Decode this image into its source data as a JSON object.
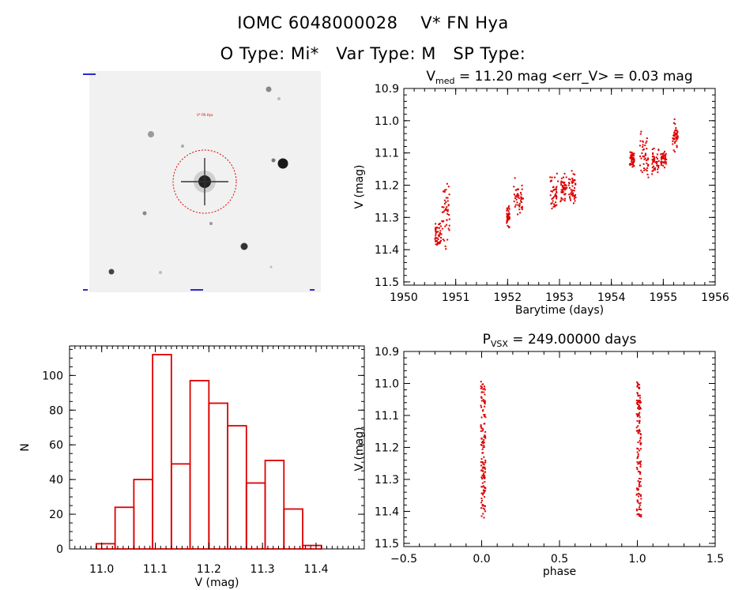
{
  "header": {
    "line1": "IOMC 6048000028    V* FN Hya",
    "line2": "O Type: Mi*   Var Type: M   SP Type:"
  },
  "thumbnail": {
    "target_label": "V* FN Hya",
    "colors": {
      "background": "#f2f2f2",
      "circle": "#dd0000"
    }
  },
  "chart_data": [
    {
      "type": "scatter",
      "title_main": "V",
      "title_sub": "med",
      "title_rest": " = 11.20 mag <err_V> = 0.03 mag",
      "xlabel": "Barytime (days)",
      "ylabel": "V (mag)",
      "xlim": [
        1950,
        1956
      ],
      "ylim": [
        10.9,
        11.51
      ],
      "y_inverted": true,
      "x_ticks": [
        "1950",
        "1951",
        "1952",
        "1953",
        "1954",
        "1955",
        "1956"
      ],
      "y_ticks": [
        "10.9",
        "11.0",
        "11.1",
        "11.2",
        "11.3",
        "11.4",
        "11.5"
      ],
      "color": "#dd0000",
      "clusters": [
        {
          "x_range": [
            1950.6,
            1950.73
          ],
          "y_range": [
            11.31,
            11.4
          ]
        },
        {
          "x_range": [
            1950.73,
            1950.88
          ],
          "y_range": [
            11.18,
            11.41
          ]
        },
        {
          "x_range": [
            1951.98,
            1952.04
          ],
          "y_range": [
            11.26,
            11.34
          ]
        },
        {
          "x_range": [
            1952.12,
            1952.3
          ],
          "y_range": [
            11.17,
            11.3
          ]
        },
        {
          "x_range": [
            1952.82,
            1952.98
          ],
          "y_range": [
            11.15,
            11.29
          ]
        },
        {
          "x_range": [
            1953.02,
            1953.14
          ],
          "y_range": [
            11.15,
            11.26
          ]
        },
        {
          "x_range": [
            1953.18,
            1953.32
          ],
          "y_range": [
            11.14,
            11.27
          ]
        },
        {
          "x_range": [
            1954.35,
            1954.45
          ],
          "y_range": [
            11.09,
            11.15
          ]
        },
        {
          "x_range": [
            1954.55,
            1954.72
          ],
          "y_range": [
            11.03,
            11.18
          ]
        },
        {
          "x_range": [
            1954.78,
            1954.92
          ],
          "y_range": [
            11.08,
            11.17
          ]
        },
        {
          "x_range": [
            1954.95,
            1955.06
          ],
          "y_range": [
            11.09,
            11.15
          ]
        },
        {
          "x_range": [
            1955.18,
            1955.28
          ],
          "y_range": [
            10.99,
            11.1
          ]
        }
      ]
    },
    {
      "type": "bar",
      "title": "",
      "xlabel": "V (mag)",
      "ylabel": "N",
      "xlim": [
        10.94,
        11.49
      ],
      "ylim": [
        0,
        117
      ],
      "x_ticks": [
        "11.0",
        "11.1",
        "11.2",
        "11.3",
        "11.4"
      ],
      "y_ticks": [
        "0",
        "20",
        "40",
        "60",
        "80",
        "100"
      ],
      "bin_width": 0.035,
      "bin_starts": [
        10.99,
        11.025,
        11.06,
        11.095,
        11.13,
        11.165,
        11.2,
        11.235,
        11.27,
        11.305,
        11.34,
        11.375,
        11.41
      ],
      "values": [
        3,
        24,
        40,
        112,
        49,
        97,
        84,
        71,
        38,
        51,
        23,
        2
      ],
      "color": "#dd0000"
    },
    {
      "type": "scatter",
      "title_main": "P",
      "title_sub": "VSX",
      "title_rest": " = 249.00000 days",
      "xlabel": "phase",
      "ylabel": "V (mag)",
      "xlim": [
        -0.5,
        1.5
      ],
      "ylim": [
        10.9,
        11.51
      ],
      "y_inverted": true,
      "x_ticks": [
        "−0.5",
        "0.0",
        "0.5",
        "1.0",
        "1.5"
      ],
      "y_ticks": [
        "10.9",
        "11.0",
        "11.1",
        "11.2",
        "11.3",
        "11.4",
        "11.5"
      ],
      "color": "#dd0000",
      "columns": [
        {
          "x": 0.01,
          "y_range": [
            10.99,
            11.42
          ]
        },
        {
          "x": 1.01,
          "y_range": [
            10.99,
            11.42
          ]
        }
      ]
    }
  ]
}
